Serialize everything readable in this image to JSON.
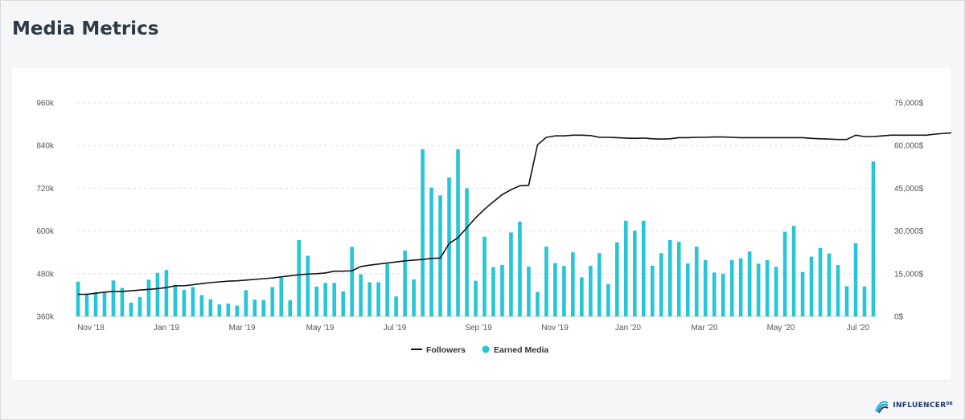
{
  "page": {
    "title": "Media Metrics"
  },
  "brand": {
    "name": "INFLUENCER",
    "sup": "DB"
  },
  "colors": {
    "followers": "#111111",
    "earned_media": "#26c6d6",
    "grid": "#e3e3e3"
  },
  "chart_data": {
    "type": "bar-line-combo",
    "x_labels": [
      "Nov '18",
      "Jan '19",
      "Mar '19",
      "May '19",
      "Jul '19",
      "Sep '19",
      "Nov '19",
      "Jan '20",
      "Mar '20",
      "May '20",
      "Jul '20"
    ],
    "left_axis": {
      "ticks": [
        "960k",
        "840k",
        "720k",
        "600k",
        "480k",
        "360k"
      ],
      "min": 360000,
      "max": 960000
    },
    "right_axis": {
      "ticks": [
        "75,000$",
        "60,000$",
        "45,000$",
        "30,000$",
        "15,000$",
        "0$"
      ],
      "min": 0,
      "max": 75000
    },
    "legend_position": "bottom-center",
    "grid": true,
    "series": [
      {
        "name": "Followers",
        "type": "line",
        "axis": "left",
        "values": [
          422000,
          422000,
          425000,
          428000,
          430000,
          430000,
          432000,
          434000,
          436000,
          438000,
          441000,
          446000,
          446000,
          449000,
          452000,
          455000,
          457000,
          459000,
          460000,
          462000,
          464000,
          466000,
          468000,
          471000,
          474000,
          477000,
          479000,
          480000,
          482000,
          487000,
          487000,
          488000,
          500000,
          504000,
          507000,
          510000,
          513000,
          516000,
          518000,
          520000,
          523000,
          524000,
          565000,
          581000,
          609000,
          637000,
          661000,
          682000,
          702000,
          716000,
          727000,
          728000,
          842000,
          863000,
          867000,
          867000,
          869000,
          869000,
          868000,
          863000,
          863000,
          862000,
          861000,
          860000,
          861000,
          859000,
          858000,
          859000,
          862000,
          862000,
          863000,
          863000,
          864000,
          864000,
          863000,
          862000,
          862000,
          862000,
          862000,
          862000,
          862000,
          862000,
          862000,
          860000,
          859000,
          858000,
          857000,
          857000,
          869000,
          865000,
          865000,
          867000,
          869000,
          869000,
          869000,
          869000,
          869000,
          872000,
          874000,
          876000,
          887000
        ]
      },
      {
        "name": "Earned Media",
        "type": "bar",
        "axis": "right",
        "values": [
          12200,
          8000,
          8500,
          8500,
          12600,
          10000,
          4800,
          6800,
          12900,
          15300,
          16300,
          11100,
          9300,
          10300,
          7500,
          6000,
          4200,
          4500,
          3800,
          9200,
          5900,
          5800,
          10300,
          13600,
          5700,
          26800,
          21300,
          10500,
          11800,
          11800,
          8800,
          24400,
          14800,
          12000,
          12000,
          18500,
          7000,
          23100,
          13000,
          58700,
          45200,
          42500,
          48800,
          58700,
          45000,
          12500,
          28000,
          17300,
          18100,
          29500,
          33300,
          17500,
          8600,
          24500,
          18700,
          17700,
          22500,
          13700,
          17800,
          22200,
          11400,
          26000,
          33600,
          30100,
          33600,
          17800,
          22200,
          26800,
          26200,
          18600,
          24500,
          19800,
          15400,
          15000,
          19800,
          20400,
          22800,
          18500,
          19800,
          17400,
          29700,
          31800,
          15600,
          21000,
          24000,
          22100,
          18000,
          10600,
          25700,
          10500,
          54400
        ]
      }
    ]
  }
}
